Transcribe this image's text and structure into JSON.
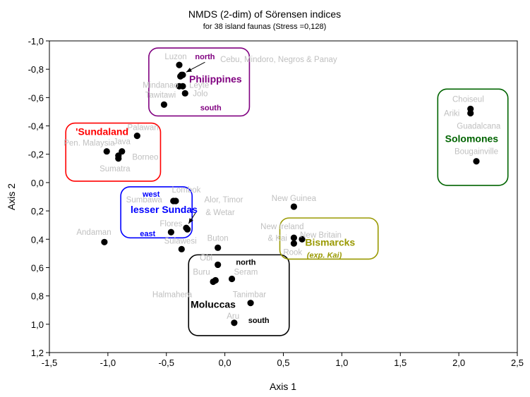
{
  "chart_data": {
    "type": "scatter",
    "title": "NMDS (2-dim) of Sörensen indices",
    "subtitle": "for 38 island faunas (Stress =0,128)",
    "xlabel": "Axis 1",
    "ylabel": "Axis 2",
    "xlim": [
      -1.5,
      2.5
    ],
    "ylim": [
      -1.0,
      1.2
    ],
    "y_inverted": true,
    "grid": false,
    "x_ticks": [
      -1.5,
      -1.0,
      -0.5,
      0.0,
      0.5,
      1.0,
      1.5,
      2.0,
      2.5
    ],
    "y_ticks": [
      -1.0,
      -0.8,
      -0.6,
      -0.4,
      -0.2,
      0.0,
      0.2,
      0.4,
      0.6,
      0.8,
      1.0,
      1.2
    ],
    "x_tick_labels": [
      "-1,5",
      "-1,0",
      "-0,5",
      "0,0",
      "0,5",
      "1,0",
      "1,5",
      "2,0",
      "2,5"
    ],
    "y_tick_labels": [
      "-1,0",
      "-0,8",
      "-0,6",
      "-0,4",
      "-0,2",
      "0,0",
      "0,2",
      "0,4",
      "0,6",
      "0,8",
      "1,0",
      "1,2"
    ],
    "points": [
      {
        "x": -0.39,
        "y": -0.83
      },
      {
        "x": -0.38,
        "y": -0.75
      },
      {
        "x": -0.37,
        "y": -0.76
      },
      {
        "x": -0.36,
        "y": -0.76
      },
      {
        "x": -0.39,
        "y": -0.68
      },
      {
        "x": -0.36,
        "y": -0.68
      },
      {
        "x": -0.34,
        "y": -0.63
      },
      {
        "x": -0.52,
        "y": -0.55
      },
      {
        "x": -0.75,
        "y": -0.33
      },
      {
        "x": -1.01,
        "y": -0.22
      },
      {
        "x": -0.88,
        "y": -0.22
      },
      {
        "x": -0.91,
        "y": -0.19
      },
      {
        "x": -0.91,
        "y": -0.17
      },
      {
        "x": -0.44,
        "y": 0.13
      },
      {
        "x": -0.42,
        "y": 0.13
      },
      {
        "x": -0.33,
        "y": 0.32
      },
      {
        "x": -0.32,
        "y": 0.33
      },
      {
        "x": -0.46,
        "y": 0.35
      },
      {
        "x": -1.03,
        "y": 0.42
      },
      {
        "x": -0.37,
        "y": 0.47
      },
      {
        "x": -0.06,
        "y": 0.46
      },
      {
        "x": -0.06,
        "y": 0.58
      },
      {
        "x": 0.06,
        "y": 0.68
      },
      {
        "x": -0.1,
        "y": 0.7
      },
      {
        "x": -0.08,
        "y": 0.69
      },
      {
        "x": 0.22,
        "y": 0.85
      },
      {
        "x": 0.08,
        "y": 0.99
      },
      {
        "x": 0.59,
        "y": 0.17
      },
      {
        "x": 0.59,
        "y": 0.39
      },
      {
        "x": 0.59,
        "y": 0.43
      },
      {
        "x": 0.66,
        "y": 0.4
      },
      {
        "x": 2.1,
        "y": -0.52
      },
      {
        "x": 2.1,
        "y": -0.49
      },
      {
        "x": 2.15,
        "y": -0.15
      }
    ],
    "site_labels": [
      {
        "text": "Luzon",
        "x": -0.42,
        "y": -0.89
      },
      {
        "text": "Cebu, Mindoro, Negros & Panay",
        "x": 0.46,
        "y": -0.87
      },
      {
        "text": "Mindanao",
        "x": -0.55,
        "y": -0.69
      },
      {
        "text": "Leyte",
        "x": -0.22,
        "y": -0.69
      },
      {
        "text": "Tawitawi",
        "x": -0.55,
        "y": -0.62
      },
      {
        "text": "Jolo",
        "x": -0.21,
        "y": -0.63
      },
      {
        "text": "Palawan",
        "x": -0.7,
        "y": -0.39
      },
      {
        "text": "Java",
        "x": -0.88,
        "y": -0.29
      },
      {
        "text": "Pen. Malaysia",
        "x": -1.16,
        "y": -0.28
      },
      {
        "text": "Borneo",
        "x": -0.68,
        "y": -0.18
      },
      {
        "text": "Sumatra",
        "x": -0.94,
        "y": -0.1
      },
      {
        "text": "Lombok",
        "x": -0.33,
        "y": 0.05
      },
      {
        "text": "Sumbawa",
        "x": -0.69,
        "y": 0.12
      },
      {
        "text": "Alor, Timor",
        "x": -0.01,
        "y": 0.12
      },
      {
        "text": "& Wetar",
        "x": -0.04,
        "y": 0.21
      },
      {
        "text": "Flores",
        "x": -0.46,
        "y": 0.29
      },
      {
        "text": "Andaman",
        "x": -1.12,
        "y": 0.35
      },
      {
        "text": "Sulawesi",
        "x": -0.38,
        "y": 0.41
      },
      {
        "text": "Buton",
        "x": -0.06,
        "y": 0.39
      },
      {
        "text": "Obi",
        "x": -0.16,
        "y": 0.53
      },
      {
        "text": "Buru",
        "x": -0.2,
        "y": 0.63
      },
      {
        "text": "Seram",
        "x": 0.18,
        "y": 0.63
      },
      {
        "text": "Halmahera",
        "x": -0.45,
        "y": 0.79
      },
      {
        "text": "Tanimbar",
        "x": 0.21,
        "y": 0.79
      },
      {
        "text": "Aru",
        "x": 0.07,
        "y": 0.94
      },
      {
        "text": "New Guinea",
        "x": 0.59,
        "y": 0.11
      },
      {
        "text": "New Ireland",
        "x": 0.49,
        "y": 0.31
      },
      {
        "text": "& Kai",
        "x": 0.45,
        "y": 0.39
      },
      {
        "text": "New Britain",
        "x": 0.82,
        "y": 0.37
      },
      {
        "text": "Rook",
        "x": 0.58,
        "y": 0.49
      },
      {
        "text": "Choiseul",
        "x": 2.08,
        "y": -0.59
      },
      {
        "text": "Ariki",
        "x": 1.94,
        "y": -0.49
      },
      {
        "text": "Guadalcana",
        "x": 2.17,
        "y": -0.4
      },
      {
        "text": "Bougainville",
        "x": 2.15,
        "y": -0.22
      }
    ],
    "groups": [
      {
        "name": "Philippines",
        "color": "#800080",
        "label_x": -0.08,
        "label_y": -0.73,
        "tags": [
          {
            "text": "north",
            "x": -0.17,
            "y": -0.89
          },
          {
            "text": "south",
            "x": -0.12,
            "y": -0.53
          }
        ],
        "box": {
          "x0": -0.65,
          "y0": -0.95,
          "x1": 0.21,
          "y1": -0.47
        }
      },
      {
        "name": "'Sundaland",
        "color": "#ff0000",
        "label_x": -1.05,
        "label_y": -0.36,
        "tags": [],
        "box": {
          "x0": -1.36,
          "y0": -0.42,
          "x1": -0.55,
          "y1": -0.01
        }
      },
      {
        "name": "lesser Sundas",
        "color": "#0000ff",
        "label_x": -0.52,
        "label_y": 0.19,
        "tags": [
          {
            "text": "west",
            "x": -0.63,
            "y": 0.08
          },
          {
            "text": "east",
            "x": -0.66,
            "y": 0.36
          }
        ],
        "box": {
          "x0": -0.89,
          "y0": 0.03,
          "x1": -0.28,
          "y1": 0.39
        }
      },
      {
        "name": "Moluccas",
        "color": "#000000",
        "label_x": -0.1,
        "label_y": 0.86,
        "tags": [
          {
            "text": "north",
            "x": 0.18,
            "y": 0.56
          },
          {
            "text": "south",
            "x": 0.29,
            "y": 0.97
          }
        ],
        "box": {
          "x0": -0.31,
          "y0": 0.51,
          "x1": 0.55,
          "y1": 1.08
        }
      },
      {
        "name": "Bismarcks",
        "color": "#999900",
        "label_x": 0.9,
        "label_y": 0.42,
        "tags": [
          {
            "text": "(exp. Kai)",
            "x": 0.85,
            "y": 0.51
          }
        ],
        "box": {
          "x0": 0.47,
          "y0": 0.25,
          "x1": 1.31,
          "y1": 0.54
        }
      },
      {
        "name": "Solomones",
        "color": "#006400",
        "label_x": 2.11,
        "label_y": -0.31,
        "tags": [],
        "box": {
          "x0": 1.82,
          "y0": -0.66,
          "x1": 2.42,
          "y1": 0.02
        }
      }
    ],
    "arrows": [
      {
        "from": [
          -0.17,
          -0.85
        ],
        "to": [
          -0.33,
          -0.78
        ]
      },
      {
        "from": [
          -0.24,
          0.2
        ],
        "to": [
          -0.31,
          0.29
        ]
      }
    ]
  }
}
